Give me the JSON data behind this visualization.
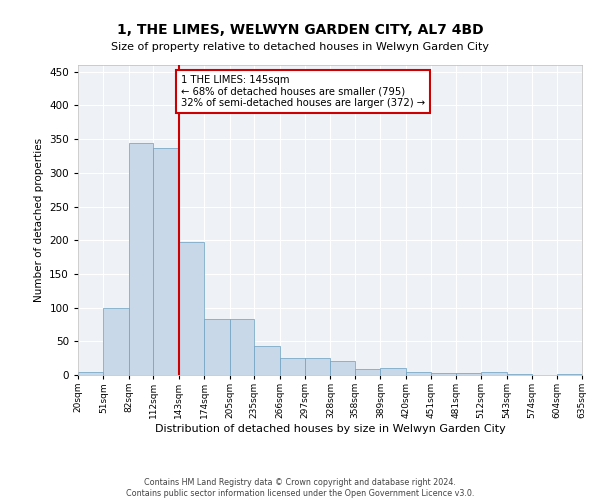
{
  "title": "1, THE LIMES, WELWYN GARDEN CITY, AL7 4BD",
  "subtitle": "Size of property relative to detached houses in Welwyn Garden City",
  "xlabel": "Distribution of detached houses by size in Welwyn Garden City",
  "ylabel": "Number of detached properties",
  "bar_color": "#c8d8e8",
  "bar_edge_color": "#6a9fc0",
  "marker_color": "#cc0000",
  "marker_bin_index": 4,
  "bin_edges": [
    20,
    51,
    82,
    112,
    143,
    174,
    205,
    235,
    266,
    297,
    328,
    358,
    389,
    420,
    451,
    481,
    512,
    543,
    574,
    604,
    635
  ],
  "bin_labels": [
    "20sqm",
    "51sqm",
    "82sqm",
    "112sqm",
    "143sqm",
    "174sqm",
    "205sqm",
    "235sqm",
    "266sqm",
    "297sqm",
    "328sqm",
    "358sqm",
    "389sqm",
    "420sqm",
    "451sqm",
    "481sqm",
    "512sqm",
    "543sqm",
    "574sqm",
    "604sqm",
    "635sqm"
  ],
  "bar_heights": [
    5,
    100,
    345,
    337,
    197,
    83,
    83,
    43,
    25,
    25,
    21,
    9,
    10,
    5,
    3,
    3,
    4,
    1,
    0,
    1
  ],
  "annotation_line1": "1 THE LIMES: 145sqm",
  "annotation_line2": "← 68% of detached houses are smaller (795)",
  "annotation_line3": "32% of semi-detached houses are larger (372) →",
  "annotation_box_color": "#ffffff",
  "annotation_box_edge": "#cc0000",
  "footer_line1": "Contains HM Land Registry data © Crown copyright and database right 2024.",
  "footer_line2": "Contains public sector information licensed under the Open Government Licence v3.0.",
  "ylim": [
    0,
    460
  ],
  "yticks": [
    0,
    50,
    100,
    150,
    200,
    250,
    300,
    350,
    400,
    450
  ],
  "background_color": "#eef2f7",
  "grid_color": "#ffffff",
  "fig_bg_color": "#ffffff"
}
